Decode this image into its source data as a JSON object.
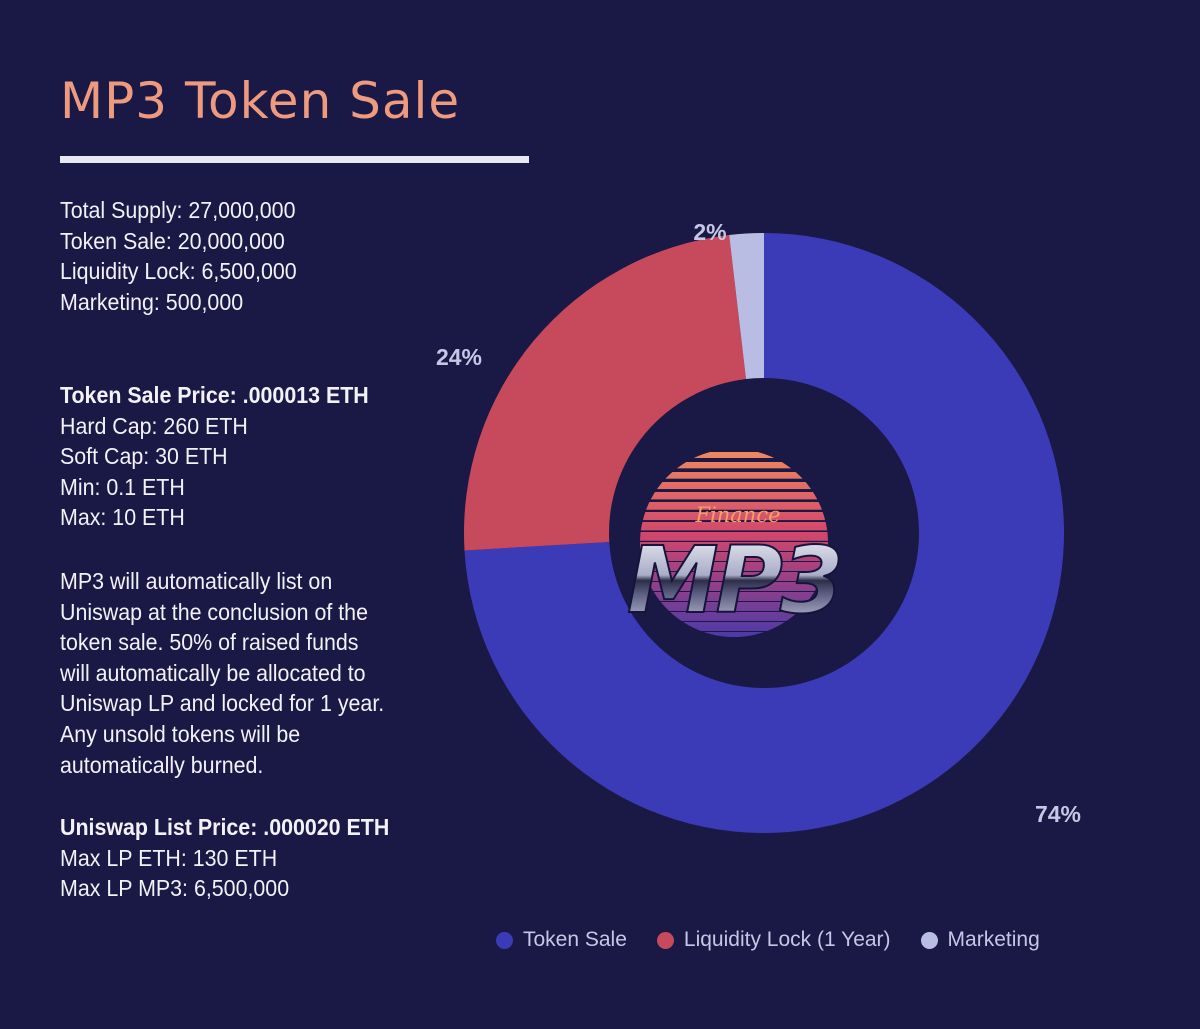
{
  "header": {
    "title": "MP3 Token Sale"
  },
  "supply_block": {
    "lines": [
      "Total Supply: 27,000,000",
      "Token Sale: 20,000,000",
      "Liquidity Lock: 6,500,000",
      "Marketing: 500,000"
    ]
  },
  "sale_block": {
    "heading": "Token Sale Price: .000013 ETH",
    "lines": [
      "Hard Cap: 260 ETH",
      "Soft Cap: 30 ETH",
      "Min: 0.1 ETH",
      "Max: 10 ETH"
    ]
  },
  "description": {
    "lines": [
      "MP3 will automatically list on",
      "Uniswap at the conclusion of the",
      "token sale. 50% of raised funds",
      "will automatically be allocated to",
      "Uniswap LP and locked for 1 year.",
      "Any unsold tokens will be",
      "automatically burned."
    ]
  },
  "listing_block": {
    "heading": "Uniswap List Price: .000020 ETH",
    "lines": [
      "Max LP ETH: 130 ETH",
      "Max LP MP3: 6,500,000"
    ]
  },
  "logo": {
    "script_text": "Finance",
    "main_text": "MP3"
  },
  "chart_data": {
    "type": "pie",
    "style": "donut",
    "categories": [
      "Token Sale",
      "Liquidity Lock (1 Year)",
      "Marketing"
    ],
    "values": [
      20000000,
      6500000,
      500000
    ],
    "data_labels": [
      "74%",
      "24%",
      "2%"
    ],
    "colors": [
      "#3b3bb8",
      "#c64a5b",
      "#b9bde3"
    ],
    "legend_position": "bottom"
  },
  "colors": {
    "background": "#1a1845",
    "title": "#ee9a7f",
    "text": "#f2f2f6",
    "label": "#c6c7e6"
  }
}
